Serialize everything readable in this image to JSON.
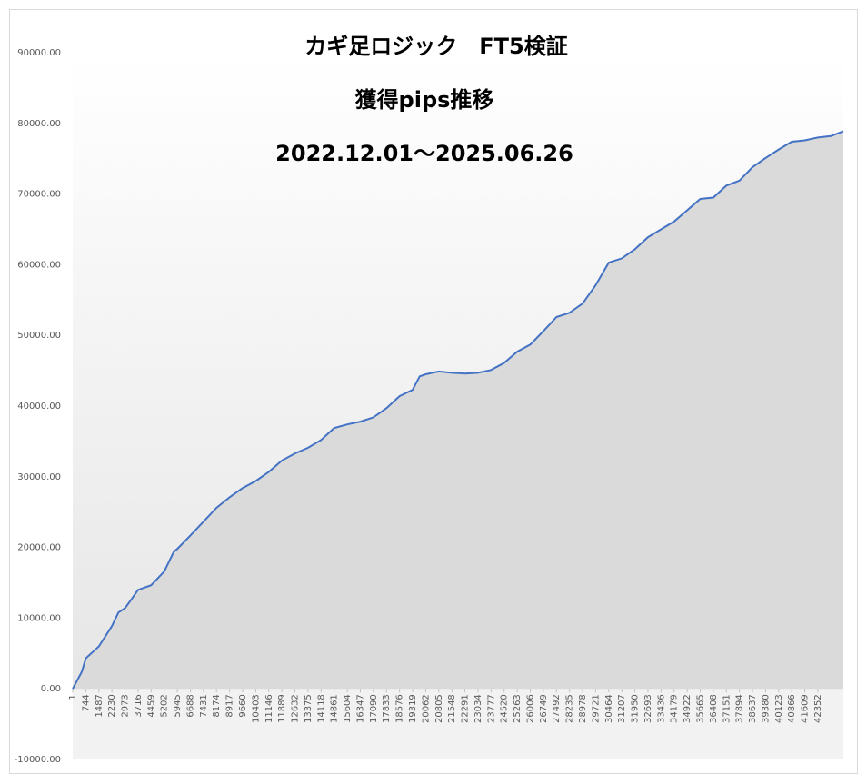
{
  "chart_data": {
    "type": "area",
    "title": [
      "カギ足ロジック　FT5検証",
      "獲得pips推移",
      "2022.12.01～2025.06.26"
    ],
    "color": "#4472c4",
    "fill": "#dadada",
    "x": [
      1,
      516,
      744,
      1487,
      1900,
      2230,
      2600,
      2973,
      3350,
      3716,
      4459,
      5202,
      5750,
      5945,
      6688,
      7431,
      8174,
      8917,
      9660,
      10403,
      11146,
      11889,
      12632,
      13375,
      14118,
      14861,
      15604,
      16347,
      17090,
      17833,
      18576,
      19319,
      19720,
      20062,
      20805,
      21548,
      22291,
      23034,
      23777,
      24520,
      25263,
      26006,
      26749,
      27492,
      28235,
      28978,
      29721,
      30464,
      31207,
      31950,
      32693,
      33436,
      34179,
      34922,
      35665,
      36408,
      37151,
      37894,
      38637,
      39380,
      40123,
      40866,
      41609,
      42352,
      43095,
      43800
    ],
    "values": [
      0,
      2400,
      4300,
      6000,
      7600,
      8900,
      10800,
      11400,
      12700,
      14000,
      14650,
      16600,
      19400,
      19800,
      21700,
      23650,
      25600,
      27100,
      28400,
      29400,
      30700,
      32300,
      33300,
      34100,
      35200,
      36900,
      37400,
      37800,
      38400,
      39700,
      41400,
      42300,
      44200,
      44500,
      44900,
      44700,
      44600,
      44700,
      45100,
      46100,
      47700,
      48700,
      50600,
      52600,
      53200,
      54500,
      57100,
      60300,
      60900,
      62200,
      63900,
      65000,
      66100,
      67700,
      69300,
      69500,
      71200,
      71900,
      73800,
      75100,
      76300,
      77400,
      77600,
      78000,
      78200,
      78900
    ],
    "xlim": [
      1,
      43800
    ],
    "xticks": [
      1,
      744,
      1487,
      2230,
      2973,
      3716,
      4459,
      5202,
      5945,
      6688,
      7431,
      8174,
      8917,
      9660,
      10403,
      11146,
      11889,
      12632,
      13375,
      14118,
      14861,
      15604,
      16347,
      17090,
      17833,
      18576,
      19319,
      20062,
      20805,
      21548,
      22291,
      23034,
      23777,
      24520,
      25263,
      26006,
      26749,
      27492,
      28235,
      28978,
      29721,
      30464,
      31207,
      31950,
      32693,
      33436,
      34179,
      34922,
      35665,
      36408,
      37151,
      37894,
      38637,
      39380,
      40123,
      40866,
      41609,
      42352
    ],
    "ylim": [
      -10000,
      90000
    ],
    "yticks": [
      {
        "value": -10000,
        "label": "-10000.00"
      },
      {
        "value": 0,
        "label": "0.00"
      },
      {
        "value": 10000,
        "label": "10000.00"
      },
      {
        "value": 20000,
        "label": "20000.00"
      },
      {
        "value": 30000,
        "label": "30000.00"
      },
      {
        "value": 40000,
        "label": "40000.00"
      },
      {
        "value": 50000,
        "label": "50000.00"
      },
      {
        "value": 60000,
        "label": "60000.00"
      },
      {
        "value": 70000,
        "label": "70000.00"
      },
      {
        "value": 80000,
        "label": "80000.00"
      },
      {
        "value": 90000,
        "label": "90000.00"
      }
    ]
  }
}
